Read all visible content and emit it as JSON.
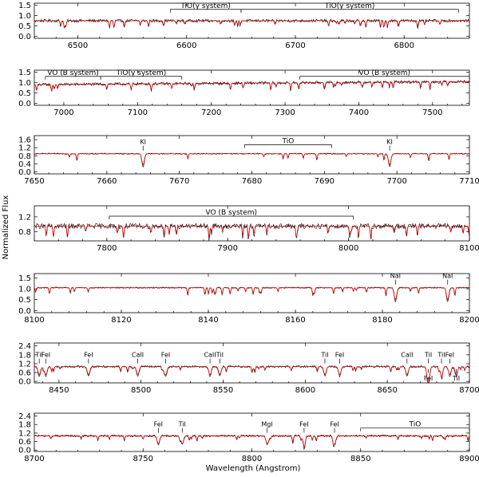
{
  "chart_data": {
    "type": "line",
    "ylabel": "Normalized Flux",
    "xlabel": "Wavelength (Angstrom)",
    "series_colors": {
      "observed": "#000000",
      "model": "#e00000"
    },
    "panels": [
      {
        "xlim": [
          6460,
          6860
        ],
        "xticks": [
          6500,
          6600,
          6700,
          6800
        ],
        "ylim": [
          -0.1,
          1.6
        ],
        "yticks": [
          "0.0",
          "0.5",
          "1.0",
          "1.5"
        ],
        "yticks_values": [
          0.0,
          0.5,
          1.0,
          1.5
        ],
        "baseline": 0.75,
        "features": [
          {
            "label": "TiO(γ system)",
            "x1": 6585,
            "x2": 6650,
            "y": 1.3
          },
          {
            "label": "TiO(γ system)",
            "x1": 6650,
            "x2": 6850,
            "y": 1.3
          }
        ],
        "lines": []
      },
      {
        "xlim": [
          6960,
          7550
        ],
        "xticks": [
          7000,
          7100,
          7200,
          7300,
          7400,
          7500
        ],
        "ylim": [
          -0.1,
          1.6
        ],
        "yticks": [
          "0.0",
          "0.5",
          "1.0",
          "1.5"
        ],
        "yticks_values": [
          0.0,
          0.5,
          1.0,
          1.5
        ],
        "baseline": 0.9,
        "features": [
          {
            "label": "VO (B system)",
            "x1": 6975,
            "x2": 7050,
            "y": 1.3
          },
          {
            "label": "TiO(γ system)",
            "x1": 7050,
            "x2": 7160,
            "y": 1.3
          },
          {
            "label": "VO (B system)",
            "x1": 7320,
            "x2": 7550,
            "y": 1.3
          }
        ],
        "lines": []
      },
      {
        "xlim": [
          7650,
          7710
        ],
        "xticks": [
          7650,
          7660,
          7670,
          7680,
          7690,
          7700,
          7710
        ],
        "ylim": [
          -0.1,
          1.8
        ],
        "yticks": [
          "0.0",
          "0.4",
          "0.8",
          "1.2",
          "1.6"
        ],
        "yticks_values": [
          0.0,
          0.4,
          0.8,
          1.2,
          1.6
        ],
        "baseline": 0.9,
        "features": [
          {
            "label": "TiO",
            "x1": 7679,
            "x2": 7691,
            "y": 1.35
          }
        ],
        "lines": [
          {
            "label": "KI",
            "x": 7665
          },
          {
            "label": "KI",
            "x": 7699
          }
        ]
      },
      {
        "xlim": [
          7740,
          8100
        ],
        "xticks": [
          7800,
          7900,
          8000,
          8100
        ],
        "ylim": [
          0.55,
          1.5
        ],
        "yticks": [
          "0.8",
          "1.2"
        ],
        "yticks_values": [
          0.8,
          1.2
        ],
        "baseline": 0.95,
        "features": [
          {
            "label": "VO (B system)",
            "x1": 7802,
            "x2": 8004,
            "y": 1.22
          }
        ],
        "lines": []
      },
      {
        "xlim": [
          8100,
          8200
        ],
        "xticks": [
          8100,
          8120,
          8140,
          8160,
          8180,
          8200
        ],
        "ylim": [
          -0.1,
          1.7
        ],
        "yticks": [
          "0.0",
          "0.5",
          "1.0",
          "1.5"
        ],
        "yticks_values": [
          0.0,
          0.5,
          1.0,
          1.5
        ],
        "baseline": 1.05,
        "features": [],
        "lines": [
          {
            "label": "NaI",
            "x": 8183
          },
          {
            "label": "NaI",
            "x": 8195
          }
        ]
      },
      {
        "xlim": [
          8435,
          8700
        ],
        "xticks": [
          8450,
          8500,
          8550,
          8600,
          8650,
          8700
        ],
        "ylim": [
          -0.1,
          2.6
        ],
        "yticks": [
          "0.0",
          "0.6",
          "1.2",
          "1.8",
          "2.4"
        ],
        "yticks_values": [
          0.0,
          0.6,
          1.2,
          1.8,
          2.4
        ],
        "baseline": 1.0,
        "features": [],
        "lines": [
          {
            "label": "TiI",
            "x": 8438
          },
          {
            "label": "FeI",
            "x": 8442
          },
          {
            "label": "FeI",
            "x": 8468
          },
          {
            "label": "CaII",
            "x": 8498
          },
          {
            "label": "FeI",
            "x": 8515
          },
          {
            "label": "CaII",
            "x": 8542
          },
          {
            "label": "TiI",
            "x": 8548
          },
          {
            "label": "TiI",
            "x": 8612
          },
          {
            "label": "FeI",
            "x": 8621
          },
          {
            "label": "CaII",
            "x": 8662
          },
          {
            "label": "FeI",
            "x": 8675,
            "below": true
          },
          {
            "label": "TiI",
            "x": 8675
          },
          {
            "label": "TiI",
            "x": 8683
          },
          {
            "label": "FeI",
            "x": 8688
          },
          {
            "label": "TiI",
            "x": 8692,
            "below": true
          }
        ]
      },
      {
        "xlim": [
          8700,
          8900
        ],
        "xticks": [
          8700,
          8750,
          8800,
          8850,
          8900
        ],
        "ylim": [
          -0.1,
          2.6
        ],
        "yticks": [
          "0.0",
          "0.6",
          "1.2",
          "1.8",
          "2.4"
        ],
        "yticks_values": [
          0.0,
          0.6,
          1.2,
          1.8,
          2.4
        ],
        "baseline": 1.0,
        "features": [
          {
            "label": "TiO",
            "x1": 8850,
            "x2": 8900,
            "y": 1.55
          }
        ],
        "lines": [
          {
            "label": "FeI",
            "x": 8757
          },
          {
            "label": "TiI",
            "x": 8768
          },
          {
            "label": "MgI",
            "x": 8807
          },
          {
            "label": "FeI",
            "x": 8824
          },
          {
            "label": "FeI",
            "x": 8838
          }
        ]
      }
    ]
  }
}
